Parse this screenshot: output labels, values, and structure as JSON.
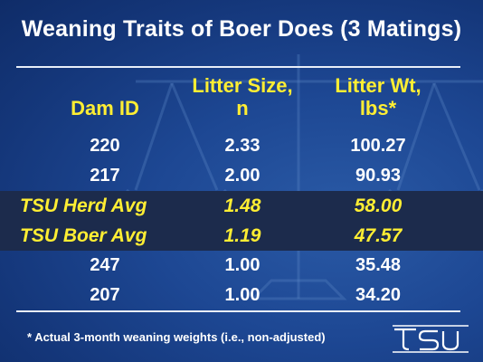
{
  "title": "Weaning Traits of Boer Does (3 Matings)",
  "headers": {
    "dam_id": "Dam ID",
    "litter_size_1": "Litter Size,",
    "litter_size_2": "n",
    "litter_wt_1": "Litter Wt,",
    "litter_wt_2": "lbs*"
  },
  "rows": [
    {
      "dam": "220",
      "size": "2.33",
      "wt": "100.27",
      "highlight": false
    },
    {
      "dam": "217",
      "size": "2.00",
      "wt": "90.93",
      "highlight": false
    },
    {
      "dam": "TSU Herd Avg",
      "size": "1.48",
      "wt": "58.00",
      "highlight": true
    },
    {
      "dam": "TSU Boer Avg",
      "size": "1.19",
      "wt": "47.57",
      "highlight": true
    },
    {
      "dam": "247",
      "size": "1.00",
      "wt": "35.48",
      "highlight": false
    },
    {
      "dam": "207",
      "size": "1.00",
      "wt": "34.20",
      "highlight": false
    }
  ],
  "footnote": "* Actual 3-month weaning weights (i.e., non-adjusted)",
  "logo": "tsu",
  "colors": {
    "background": "#1d4793",
    "header_text": "#ffee33",
    "highlight_row_bg": "#1c2b4c",
    "text": "#ffffff"
  }
}
